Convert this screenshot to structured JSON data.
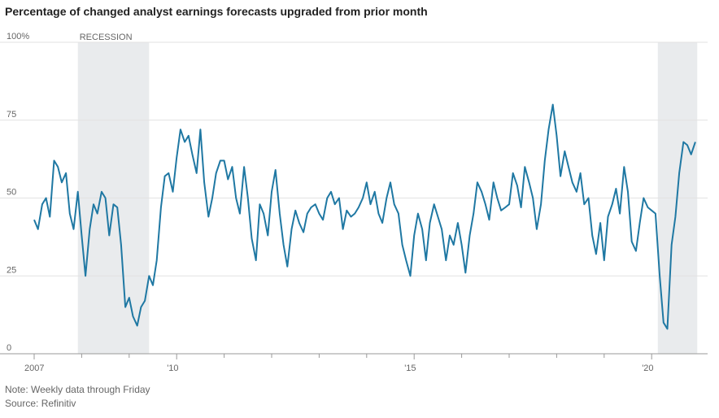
{
  "chart_data": {
    "type": "line",
    "title": "Percentage of changed analyst earnings forecasts upgraded from prior month",
    "note": "Note: Weekly data through Friday",
    "source": "Source: Refinitiv",
    "shading": [
      {
        "label": "RECESSION",
        "start": 2007.92,
        "end": 2009.42
      },
      {
        "start": 2020.13,
        "end": 2020.96
      }
    ],
    "shading_color": "#e9ebed",
    "x": [
      2007,
      2007.08,
      2007.17,
      2007.25,
      2007.33,
      2007.42,
      2007.5,
      2007.58,
      2007.67,
      2007.75,
      2007.83,
      2007.92,
      2008,
      2008.08,
      2008.17,
      2008.25,
      2008.33,
      2008.42,
      2008.5,
      2008.58,
      2008.67,
      2008.75,
      2008.83,
      2008.92,
      2009,
      2009.08,
      2009.17,
      2009.25,
      2009.33,
      2009.42,
      2009.5,
      2009.58,
      2009.67,
      2009.75,
      2009.83,
      2009.92,
      2010,
      2010.08,
      2010.17,
      2010.25,
      2010.33,
      2010.42,
      2010.5,
      2010.58,
      2010.67,
      2010.75,
      2010.83,
      2010.92,
      2011,
      2011.08,
      2011.17,
      2011.25,
      2011.33,
      2011.42,
      2011.5,
      2011.58,
      2011.67,
      2011.75,
      2011.83,
      2011.92,
      2012,
      2012.08,
      2012.17,
      2012.25,
      2012.33,
      2012.42,
      2012.5,
      2012.58,
      2012.67,
      2012.75,
      2012.83,
      2012.92,
      2013,
      2013.08,
      2013.17,
      2013.25,
      2013.33,
      2013.42,
      2013.5,
      2013.58,
      2013.67,
      2013.75,
      2013.83,
      2013.92,
      2014,
      2014.08,
      2014.17,
      2014.25,
      2014.33,
      2014.42,
      2014.5,
      2014.58,
      2014.67,
      2014.75,
      2014.83,
      2014.92,
      2015,
      2015.08,
      2015.17,
      2015.25,
      2015.33,
      2015.42,
      2015.5,
      2015.58,
      2015.67,
      2015.75,
      2015.83,
      2015.92,
      2016,
      2016.08,
      2016.17,
      2016.25,
      2016.33,
      2016.42,
      2016.5,
      2016.58,
      2016.67,
      2016.75,
      2016.83,
      2016.92,
      2017,
      2017.08,
      2017.17,
      2017.25,
      2017.33,
      2017.42,
      2017.5,
      2017.58,
      2017.67,
      2017.75,
      2017.83,
      2017.92,
      2018,
      2018.08,
      2018.17,
      2018.25,
      2018.33,
      2018.42,
      2018.5,
      2018.58,
      2018.67,
      2018.75,
      2018.83,
      2018.92,
      2019,
      2019.08,
      2019.17,
      2019.25,
      2019.33,
      2019.42,
      2019.5,
      2019.58,
      2019.67,
      2019.75,
      2019.83,
      2019.92,
      2020,
      2020.08,
      2020.17,
      2020.25,
      2020.33,
      2020.42,
      2020.5,
      2020.58,
      2020.67,
      2020.75,
      2020.83,
      2020.92
    ],
    "series": [
      {
        "name": "Upgraded",
        "color": "#1f78a3",
        "values": [
          43,
          40,
          48,
          50,
          44,
          62,
          60,
          55,
          58,
          45,
          40,
          52,
          38,
          25,
          40,
          48,
          45,
          52,
          50,
          38,
          48,
          47,
          35,
          15,
          18,
          12,
          9,
          15,
          17,
          25,
          22,
          30,
          47,
          57,
          58,
          52,
          63,
          72,
          68,
          70,
          64,
          58,
          72,
          55,
          44,
          50,
          58,
          62,
          62,
          56,
          60,
          50,
          45,
          60,
          50,
          37,
          30,
          48,
          45,
          38,
          52,
          59,
          45,
          35,
          28,
          40,
          46,
          42,
          39,
          45,
          47,
          48,
          45,
          43,
          50,
          52,
          48,
          50,
          40,
          46,
          44,
          45,
          47,
          50,
          55,
          48,
          52,
          45,
          42,
          50,
          55,
          48,
          45,
          35,
          30,
          25,
          38,
          45,
          40,
          30,
          42,
          48,
          44,
          40,
          30,
          38,
          35,
          42,
          35,
          26,
          38,
          45,
          55,
          52,
          48,
          43,
          55,
          50,
          46,
          47,
          48,
          58,
          54,
          47,
          60,
          55,
          50,
          40,
          48,
          62,
          72,
          80,
          70,
          57,
          65,
          60,
          55,
          52,
          58,
          48,
          50,
          38,
          32,
          42,
          30,
          44,
          48,
          53,
          45,
          60,
          52,
          36,
          33,
          42,
          50,
          47,
          46,
          45,
          25,
          10,
          8,
          35,
          44,
          58,
          68,
          67,
          64,
          68
        ]
      }
    ],
    "xlim": [
      2007,
      2021
    ],
    "xticks": [
      {
        "value": 2007,
        "label": "2007"
      },
      {
        "value": 2010,
        "label": "'10"
      },
      {
        "value": 2015,
        "label": "'15"
      },
      {
        "value": 2020,
        "label": "'20"
      }
    ],
    "minor_xticks": [
      2008,
      2009,
      2011,
      2012,
      2013,
      2014,
      2016,
      2017,
      2018,
      2019
    ],
    "ylim": [
      0,
      100
    ],
    "yticks": [
      0,
      25,
      50,
      75,
      {
        "value": 100,
        "label": "100%"
      }
    ],
    "grid": true
  }
}
